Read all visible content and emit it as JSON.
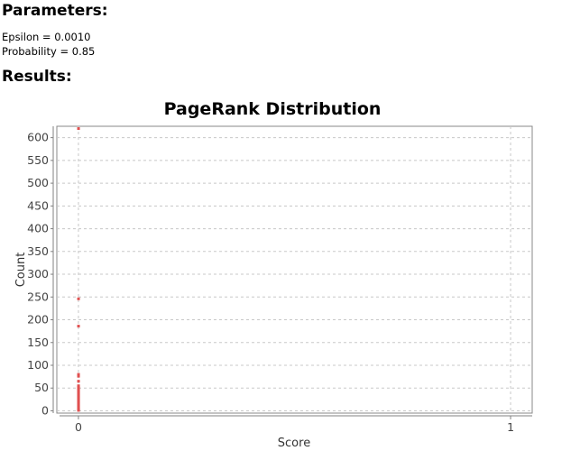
{
  "parameters": {
    "heading": "Parameters:",
    "lines": [
      {
        "label": "Epsilon",
        "value": "0.0010"
      },
      {
        "label": "Probability",
        "value": "0.85"
      }
    ]
  },
  "results": {
    "heading": "Results:"
  },
  "chart_data": {
    "type": "scatter",
    "title": "PageRank Distribution",
    "xlabel": "Score",
    "ylabel": "Count",
    "xlim": [
      -0.05,
      1.05
    ],
    "ylim": [
      -5,
      625
    ],
    "x_ticks": [
      0,
      1
    ],
    "y_ticks": [
      0,
      50,
      100,
      150,
      200,
      250,
      300,
      350,
      400,
      450,
      500,
      550,
      600
    ],
    "grid": true,
    "legend": "none",
    "point_color": "#e05050",
    "series": [
      {
        "points": [
          {
            "x": 0.0002,
            "y": 620
          },
          {
            "x": 0.0002,
            "y": 246
          },
          {
            "x": 0.0002,
            "y": 186
          },
          {
            "x": 0.0002,
            "y": 80
          },
          {
            "x": 0.0002,
            "y": 76
          },
          {
            "x": 0.0002,
            "y": 65
          },
          {
            "x": 0.0002,
            "y": 55
          },
          {
            "x": 0.0002,
            "y": 52
          },
          {
            "x": 0.0002,
            "y": 49
          },
          {
            "x": 0.0002,
            "y": 46
          },
          {
            "x": 0.0002,
            "y": 43
          },
          {
            "x": 0.0002,
            "y": 40
          },
          {
            "x": 0.0002,
            "y": 37
          },
          {
            "x": 0.0002,
            "y": 34
          },
          {
            "x": 0.0002,
            "y": 31
          },
          {
            "x": 0.0002,
            "y": 28
          },
          {
            "x": 0.0002,
            "y": 25
          },
          {
            "x": 0.0002,
            "y": 22
          },
          {
            "x": 0.0002,
            "y": 19
          },
          {
            "x": 0.0002,
            "y": 16
          },
          {
            "x": 0.0002,
            "y": 13
          },
          {
            "x": 0.0002,
            "y": 10
          },
          {
            "x": 0.0002,
            "y": 7
          },
          {
            "x": 0.0002,
            "y": 4
          },
          {
            "x": 0.0002,
            "y": 2
          },
          {
            "x": 0.0002,
            "y": 1
          }
        ]
      }
    ]
  }
}
